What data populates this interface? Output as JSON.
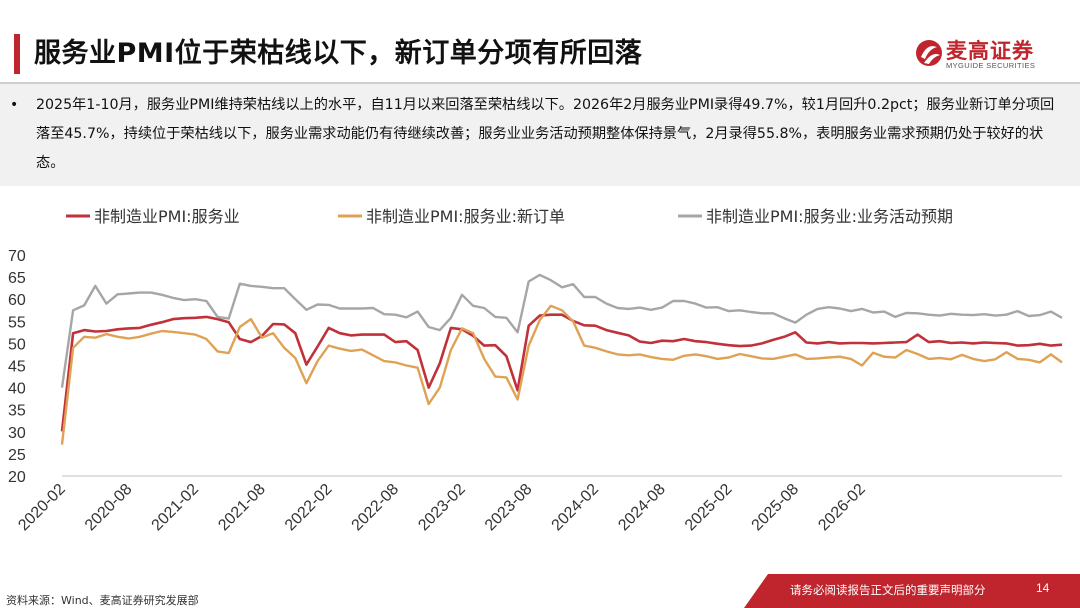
{
  "header": {
    "title": "服务业PMI位于荣枯线以下，新订单分项有所回落",
    "logo_text": "麦高证券",
    "logo_sub": "MYGUIDE SECURITIES"
  },
  "summary": {
    "bullet": "•",
    "text": "2025年1-10月，服务业PMI维持荣枯线以上的水平，自11月以来回落至荣枯线以下。2026年2月服务业PMI录得49.7%，较1月回升0.2pct；服务业新订单分项回落至45.7%，持续位于荣枯线以下，服务业需求动能仍有待继续改善；服务业业务活动预期整体保持景气，2月录得55.8%，表明服务业需求预期仍处于较好的状态。"
  },
  "footer": {
    "source": "资料来源：Wind、麦高证券研究发展部",
    "note": "请务必阅读报告正文后的重要声明部分",
    "page": "14"
  },
  "colors": {
    "brand": "#c0252d",
    "series1": "#c0313a",
    "series2": "#dfa255",
    "series3": "#a6a6a6"
  },
  "chart_data": {
    "type": "line",
    "title": "",
    "xlabel": "",
    "ylabel": "",
    "ylim": [
      20,
      70
    ],
    "yticks": [
      "20",
      "25",
      "30",
      "35",
      "40",
      "45",
      "50",
      "55",
      "60",
      "65",
      "70"
    ],
    "xticks": [
      "2020-02",
      "2020-08",
      "2021-02",
      "2021-08",
      "2022-02",
      "2022-08",
      "2023-02",
      "2023-08",
      "2024-02",
      "2024-08",
      "2025-02",
      "2025-08",
      "2026-02"
    ],
    "x_start": "2020-02",
    "x_end": "2026-02",
    "legend_position": "top",
    "grid": false,
    "series": [
      {
        "name": "非制造业PMI:服务业",
        "values": [
          30.1,
          52.3,
          53.0,
          52.7,
          52.8,
          53.2,
          53.4,
          53.5,
          54.2,
          54.8,
          55.5,
          55.7,
          55.8,
          56.0,
          55.5,
          54.8,
          51.0,
          50.3,
          51.7,
          54.4,
          54.3,
          52.3,
          45.2,
          49.3,
          53.5,
          52.3,
          51.8,
          52.0,
          52.0,
          52.0,
          50.3,
          50.5,
          48.5,
          40.0,
          45.5,
          53.5,
          53.2,
          51.7,
          49.5,
          49.6,
          47.1,
          39.4,
          54.0,
          56.3,
          56.5,
          56.5,
          55.1,
          54.1,
          54.0,
          53.0,
          52.4,
          51.8,
          50.4,
          50.1,
          50.6,
          50.5,
          51.0,
          50.5,
          50.3,
          49.9,
          49.6,
          49.4,
          49.5,
          50.0,
          50.8,
          51.5,
          52.5,
          50.2,
          50.0,
          50.3,
          50.0,
          50.1,
          50.1,
          50.0,
          50.1,
          50.2,
          50.3,
          52.0,
          50.3,
          50.5,
          50.1,
          50.2,
          50.0,
          50.2,
          50.1,
          50.0,
          49.5,
          49.6,
          49.9,
          49.5,
          49.7
        ],
        "color": "#c0313a"
      },
      {
        "name": "非制造业PMI:服务业:新订单",
        "values": [
          27.1,
          49.0,
          51.5,
          51.3,
          52.1,
          51.5,
          51.1,
          51.5,
          52.2,
          52.8,
          52.6,
          52.3,
          52.0,
          51.0,
          48.2,
          47.8,
          53.7,
          55.5,
          51.3,
          52.3,
          49.0,
          46.7,
          41.0,
          46.0,
          49.5,
          48.8,
          48.3,
          48.6,
          47.3,
          46.0,
          45.7,
          45.0,
          44.5,
          36.3,
          40.0,
          48.5,
          53.4,
          52.3,
          46.5,
          42.5,
          42.3,
          37.3,
          49.5,
          55.3,
          58.5,
          57.5,
          55.0,
          49.5,
          49.0,
          48.2,
          47.5,
          47.3,
          47.5,
          46.9,
          46.5,
          46.3,
          47.2,
          47.5,
          47.1,
          46.5,
          46.8,
          47.6,
          47.1,
          46.6,
          46.5,
          47.0,
          47.5,
          46.5,
          46.6,
          46.8,
          47.0,
          46.5,
          45.0,
          47.9,
          47.0,
          46.8,
          48.5,
          47.6,
          46.5,
          46.7,
          46.4,
          47.4,
          46.5,
          46.0,
          46.4,
          48.0,
          46.5,
          46.3,
          45.7,
          47.5,
          45.7
        ],
        "color": "#dfa255"
      },
      {
        "name": "非制造业PMI:服务业:业务活动预期",
        "values": [
          40.0,
          57.5,
          58.6,
          63.0,
          59.0,
          61.1,
          61.3,
          61.5,
          61.5,
          61.0,
          60.3,
          59.8,
          60.0,
          59.6,
          56.0,
          55.6,
          63.5,
          63.0,
          62.8,
          62.5,
          62.5,
          60.0,
          57.6,
          58.8,
          58.7,
          57.9,
          57.9,
          57.9,
          58.0,
          56.6,
          56.5,
          55.9,
          57.2,
          53.7,
          53.0,
          55.8,
          61.0,
          58.5,
          58.0,
          56.0,
          55.8,
          52.5,
          64.0,
          65.5,
          64.3,
          62.7,
          63.4,
          60.5,
          60.5,
          59.0,
          58.0,
          57.8,
          58.1,
          57.6,
          58.1,
          59.6,
          59.6,
          59.0,
          58.1,
          58.2,
          57.3,
          57.5,
          57.1,
          56.8,
          56.8,
          55.7,
          54.7,
          56.5,
          57.8,
          58.2,
          57.9,
          57.3,
          57.8,
          57.0,
          57.2,
          56.0,
          56.9,
          56.8,
          56.5,
          56.3,
          56.7,
          56.5,
          56.4,
          56.6,
          56.3,
          56.5,
          57.3,
          56.2,
          56.4,
          57.2,
          55.8
        ],
        "color": "#a6a6a6"
      }
    ]
  }
}
